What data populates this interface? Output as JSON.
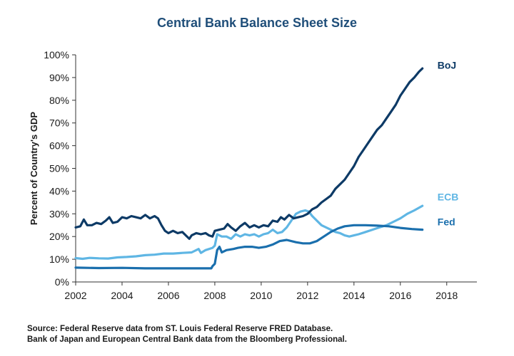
{
  "chart_data": {
    "type": "line",
    "title": "Central Bank Balance Sheet Size",
    "xlabel": "",
    "ylabel": "Percent of Country's GDP",
    "xlim": [
      2002,
      2019.3
    ],
    "ylim": [
      0,
      100
    ],
    "x_ticks": [
      "2002",
      "2004",
      "2006",
      "2008",
      "2010",
      "2012",
      "2014",
      "2016",
      "2018"
    ],
    "y_ticks": [
      "0%",
      "10%",
      "20%",
      "30%",
      "40%",
      "50%",
      "60%",
      "70%",
      "80%",
      "90%",
      "100%"
    ],
    "grid": false,
    "legend": "inline labels at line ends",
    "series": [
      {
        "name": "BoJ",
        "color": "#0d3a66",
        "points": [
          [
            2002.0,
            24
          ],
          [
            2002.2,
            24.5
          ],
          [
            2002.35,
            27.5
          ],
          [
            2002.5,
            25
          ],
          [
            2002.7,
            25
          ],
          [
            2002.9,
            26
          ],
          [
            2003.1,
            25.5
          ],
          [
            2003.3,
            27
          ],
          [
            2003.45,
            28.5
          ],
          [
            2003.6,
            26
          ],
          [
            2003.8,
            26.5
          ],
          [
            2004.0,
            28.5
          ],
          [
            2004.2,
            28
          ],
          [
            2004.4,
            29
          ],
          [
            2004.6,
            28.5
          ],
          [
            2004.8,
            28
          ],
          [
            2005.0,
            29.5
          ],
          [
            2005.2,
            28
          ],
          [
            2005.4,
            29
          ],
          [
            2005.55,
            28
          ],
          [
            2005.7,
            25
          ],
          [
            2005.85,
            22.5
          ],
          [
            2006.0,
            21.5
          ],
          [
            2006.2,
            22.5
          ],
          [
            2006.4,
            21.5
          ],
          [
            2006.6,
            22
          ],
          [
            2006.75,
            20.5
          ],
          [
            2006.9,
            19
          ],
          [
            2007.0,
            20.5
          ],
          [
            2007.2,
            21.5
          ],
          [
            2007.4,
            21
          ],
          [
            2007.6,
            21.5
          ],
          [
            2007.75,
            20.5
          ],
          [
            2007.9,
            20
          ],
          [
            2008.0,
            22.5
          ],
          [
            2008.2,
            23
          ],
          [
            2008.4,
            23.5
          ],
          [
            2008.55,
            25.5
          ],
          [
            2008.7,
            24
          ],
          [
            2008.9,
            22.5
          ],
          [
            2009.1,
            24.5
          ],
          [
            2009.3,
            26
          ],
          [
            2009.5,
            24
          ],
          [
            2009.7,
            25
          ],
          [
            2009.9,
            24
          ],
          [
            2010.1,
            25
          ],
          [
            2010.3,
            24.5
          ],
          [
            2010.5,
            27
          ],
          [
            2010.7,
            26.5
          ],
          [
            2010.85,
            28.5
          ],
          [
            2011.0,
            27.5
          ],
          [
            2011.2,
            29.5
          ],
          [
            2011.4,
            28
          ],
          [
            2011.6,
            28.5
          ],
          [
            2011.8,
            29
          ],
          [
            2012.0,
            30
          ],
          [
            2012.2,
            32
          ],
          [
            2012.4,
            33
          ],
          [
            2012.6,
            35
          ],
          [
            2012.8,
            36.5
          ],
          [
            2013.0,
            38
          ],
          [
            2013.2,
            41
          ],
          [
            2013.4,
            43
          ],
          [
            2013.6,
            45
          ],
          [
            2013.8,
            48
          ],
          [
            2014.0,
            51
          ],
          [
            2014.2,
            55
          ],
          [
            2014.4,
            58
          ],
          [
            2014.6,
            61
          ],
          [
            2014.8,
            64
          ],
          [
            2015.0,
            67
          ],
          [
            2015.2,
            69
          ],
          [
            2015.4,
            72
          ],
          [
            2015.6,
            75
          ],
          [
            2015.8,
            78
          ],
          [
            2016.0,
            82
          ],
          [
            2016.2,
            85
          ],
          [
            2016.4,
            88
          ],
          [
            2016.6,
            90
          ],
          [
            2016.8,
            92.5
          ],
          [
            2016.95,
            94
          ]
        ]
      },
      {
        "name": "ECB",
        "color": "#5fb6e4",
        "points": [
          [
            2002.0,
            10.5
          ],
          [
            2002.3,
            10.2
          ],
          [
            2002.6,
            10.6
          ],
          [
            2003.0,
            10.4
          ],
          [
            2003.4,
            10.3
          ],
          [
            2003.8,
            10.8
          ],
          [
            2004.2,
            11
          ],
          [
            2004.6,
            11.3
          ],
          [
            2005.0,
            11.8
          ],
          [
            2005.4,
            12
          ],
          [
            2005.8,
            12.5
          ],
          [
            2006.2,
            12.5
          ],
          [
            2006.6,
            12.8
          ],
          [
            2007.0,
            13
          ],
          [
            2007.3,
            14.5
          ],
          [
            2007.4,
            12.8
          ],
          [
            2007.6,
            14
          ],
          [
            2007.9,
            15
          ],
          [
            2008.0,
            16
          ],
          [
            2008.1,
            21
          ],
          [
            2008.3,
            20
          ],
          [
            2008.5,
            20
          ],
          [
            2008.7,
            19
          ],
          [
            2008.9,
            21
          ],
          [
            2009.1,
            20
          ],
          [
            2009.3,
            21
          ],
          [
            2009.5,
            20.5
          ],
          [
            2009.7,
            21
          ],
          [
            2009.9,
            20
          ],
          [
            2010.1,
            21
          ],
          [
            2010.3,
            21.5
          ],
          [
            2010.5,
            23
          ],
          [
            2010.7,
            21.5
          ],
          [
            2010.9,
            22
          ],
          [
            2011.1,
            24
          ],
          [
            2011.3,
            27
          ],
          [
            2011.5,
            30
          ],
          [
            2011.7,
            31
          ],
          [
            2011.9,
            31.5
          ],
          [
            2012.05,
            31
          ],
          [
            2012.2,
            29
          ],
          [
            2012.4,
            27
          ],
          [
            2012.6,
            25
          ],
          [
            2012.8,
            24
          ],
          [
            2013.0,
            23
          ],
          [
            2013.2,
            22
          ],
          [
            2013.4,
            21.5
          ],
          [
            2013.6,
            20.5
          ],
          [
            2013.8,
            20
          ],
          [
            2014.0,
            20.5
          ],
          [
            2014.2,
            21
          ],
          [
            2014.5,
            22
          ],
          [
            2014.8,
            23
          ],
          [
            2015.1,
            24
          ],
          [
            2015.4,
            25
          ],
          [
            2015.7,
            26.5
          ],
          [
            2016.0,
            28
          ],
          [
            2016.3,
            30
          ],
          [
            2016.6,
            31.5
          ],
          [
            2016.95,
            33.5
          ]
        ]
      },
      {
        "name": "Fed",
        "color": "#1a6fad",
        "points": [
          [
            2002.0,
            6.3
          ],
          [
            2003.0,
            6.1
          ],
          [
            2004.0,
            6.2
          ],
          [
            2005.0,
            6.0
          ],
          [
            2006.0,
            6.0
          ],
          [
            2007.0,
            6.0
          ],
          [
            2007.85,
            6.0
          ],
          [
            2007.9,
            7
          ],
          [
            2008.0,
            8
          ],
          [
            2008.1,
            14
          ],
          [
            2008.2,
            15.5
          ],
          [
            2008.3,
            13
          ],
          [
            2008.5,
            14
          ],
          [
            2008.8,
            14.5
          ],
          [
            2009.0,
            15
          ],
          [
            2009.3,
            15.5
          ],
          [
            2009.6,
            15.5
          ],
          [
            2009.9,
            15
          ],
          [
            2010.2,
            15.5
          ],
          [
            2010.5,
            16.5
          ],
          [
            2010.8,
            18
          ],
          [
            2011.1,
            18.5
          ],
          [
            2011.5,
            17.5
          ],
          [
            2011.8,
            17
          ],
          [
            2012.1,
            17
          ],
          [
            2012.4,
            18
          ],
          [
            2012.7,
            20
          ],
          [
            2013.0,
            22
          ],
          [
            2013.3,
            23.5
          ],
          [
            2013.6,
            24.5
          ],
          [
            2014.0,
            25
          ],
          [
            2014.5,
            25
          ],
          [
            2015.0,
            24.8
          ],
          [
            2015.5,
            24.5
          ],
          [
            2016.0,
            23.8
          ],
          [
            2016.5,
            23.3
          ],
          [
            2016.95,
            23
          ]
        ]
      }
    ],
    "series_labels": {
      "BoJ": "BoJ",
      "ECB": "ECB",
      "Fed": "Fed"
    }
  },
  "source": {
    "line1": "Source:  Federal Reserve data from ST. Louis Federal Reserve FRED Database.",
    "line2": "Bank of Japan and European Central Bank data from the Bloomberg Professional."
  }
}
